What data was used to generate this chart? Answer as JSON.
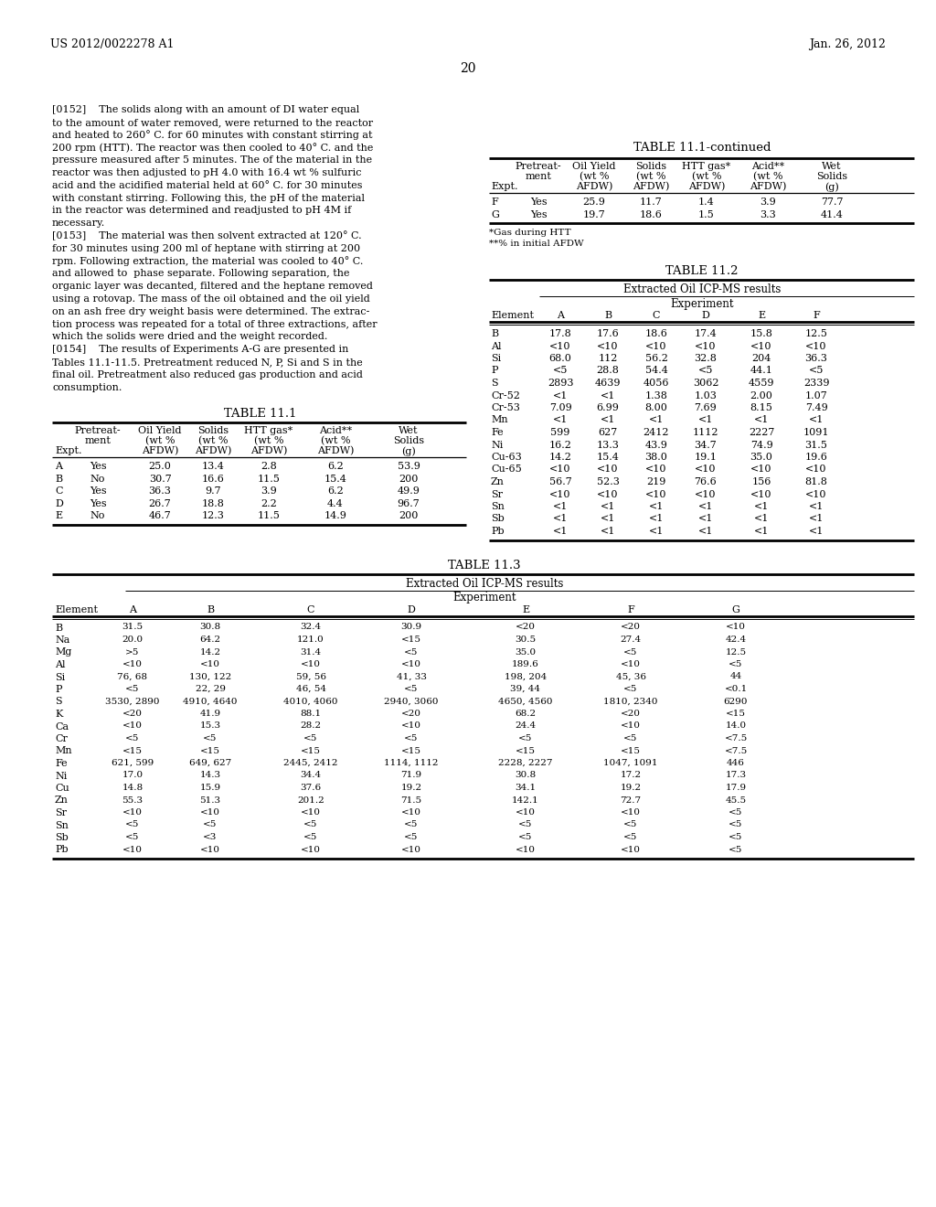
{
  "header_left": "US 2012/0022278 A1",
  "header_right": "Jan. 26, 2012",
  "page_number": "20",
  "body_text": [
    "[0152]    The solids along with an amount of DI water equal",
    "to the amount of water removed, were returned to the reactor",
    "and heated to 260° C. for 60 minutes with constant stirring at",
    "200 rpm (HTT). The reactor was then cooled to 40° C. and the",
    "pressure measured after 5 minutes. The of the material in the",
    "reactor was then adjusted to pH 4.0 with 16.4 wt % sulfuric",
    "acid and the acidified material held at 60° C. for 30 minutes",
    "with constant stirring. Following this, the pH of the material",
    "in the reactor was determined and readjusted to pH 4M if",
    "necessary.",
    "[0153]    The material was then solvent extracted at 120° C.",
    "for 30 minutes using 200 ml of heptane with stirring at 200",
    "rpm. Following extraction, the material was cooled to 40° C.",
    "and allowed to  phase separate. Following separation, the",
    "organic layer was decanted, filtered and the heptane removed",
    "using a rotovap. The mass of the oil obtained and the oil yield",
    "on an ash free dry weight basis were determined. The extrac-",
    "tion process was repeated for a total of three extractions, after",
    "which the solids were dried and the weight recorded.",
    "[0154]    The results of Experiments A-G are presented in",
    "Tables 11.1-11.5. Pretreatment reduced N, P, Si and S in the",
    "final oil. Pretreatment also reduced gas production and acid",
    "consumption."
  ],
  "table111_continued_title": "TABLE 11.1-continued",
  "table111_data": [
    [
      "F",
      "Yes",
      "25.9",
      "11.7",
      "1.4",
      "3.9",
      "77.7"
    ],
    [
      "G",
      "Yes",
      "19.7",
      "18.6",
      "1.5",
      "3.3",
      "41.4"
    ]
  ],
  "table111_footnotes": [
    "*Gas during HTT",
    "**% in initial AFDW"
  ],
  "table111_main_title": "TABLE 11.1",
  "table111_main_data": [
    [
      "A",
      "Yes",
      "25.0",
      "13.4",
      "2.8",
      "6.2",
      "53.9"
    ],
    [
      "B",
      "No",
      "30.7",
      "16.6",
      "11.5",
      "15.4",
      "200"
    ],
    [
      "C",
      "Yes",
      "36.3",
      "9.7",
      "3.9",
      "6.2",
      "49.9"
    ],
    [
      "D",
      "Yes",
      "26.7",
      "18.8",
      "2.2",
      "4.4",
      "96.7"
    ],
    [
      "E",
      "No",
      "46.7",
      "12.3",
      "11.5",
      "14.9",
      "200"
    ]
  ],
  "table112_title": "TABLE 11.2",
  "table112_subtitle": "Extracted Oil ICP-MS results",
  "table112_exp_label": "Experiment",
  "table112_headers": [
    "Element",
    "A",
    "B",
    "C",
    "D",
    "E",
    "F"
  ],
  "table112_data": [
    [
      "B",
      "17.8",
      "17.6",
      "18.6",
      "17.4",
      "15.8",
      "12.5"
    ],
    [
      "Al",
      "<10",
      "<10",
      "<10",
      "<10",
      "<10",
      "<10"
    ],
    [
      "Si",
      "68.0",
      "112",
      "56.2",
      "32.8",
      "204",
      "36.3"
    ],
    [
      "P",
      "<5",
      "28.8",
      "54.4",
      "<5",
      "44.1",
      "<5"
    ],
    [
      "S",
      "2893",
      "4639",
      "4056",
      "3062",
      "4559",
      "2339"
    ],
    [
      "Cr-52",
      "<1",
      "<1",
      "1.38",
      "1.03",
      "2.00",
      "1.07"
    ],
    [
      "Cr-53",
      "7.09",
      "6.99",
      "8.00",
      "7.69",
      "8.15",
      "7.49"
    ],
    [
      "Mn",
      "<1",
      "<1",
      "<1",
      "<1",
      "<1",
      "<1"
    ],
    [
      "Fe",
      "599",
      "627",
      "2412",
      "1112",
      "2227",
      "1091"
    ],
    [
      "Ni",
      "16.2",
      "13.3",
      "43.9",
      "34.7",
      "74.9",
      "31.5"
    ],
    [
      "Cu-63",
      "14.2",
      "15.4",
      "38.0",
      "19.1",
      "35.0",
      "19.6"
    ],
    [
      "Cu-65",
      "<10",
      "<10",
      "<10",
      "<10",
      "<10",
      "<10"
    ],
    [
      "Zn",
      "56.7",
      "52.3",
      "219",
      "76.6",
      "156",
      "81.8"
    ],
    [
      "Sr",
      "<10",
      "<10",
      "<10",
      "<10",
      "<10",
      "<10"
    ],
    [
      "Sn",
      "<1",
      "<1",
      "<1",
      "<1",
      "<1",
      "<1"
    ],
    [
      "Sb",
      "<1",
      "<1",
      "<1",
      "<1",
      "<1",
      "<1"
    ],
    [
      "Pb",
      "<1",
      "<1",
      "<1",
      "<1",
      "<1",
      "<1"
    ]
  ],
  "table113_title": "TABLE 11.3",
  "table113_subtitle": "Extracted Oil ICP-MS results",
  "table113_exp_label": "Experiment",
  "table113_headers": [
    "Element",
    "A",
    "B",
    "C",
    "D",
    "E",
    "F",
    "G"
  ],
  "table113_data": [
    [
      "B",
      "31.5",
      "30.8",
      "32.4",
      "30.9",
      "<20",
      "<20",
      "<10"
    ],
    [
      "Na",
      "20.0",
      "64.2",
      "121.0",
      "<15",
      "30.5",
      "27.4",
      "42.4"
    ],
    [
      "Mg",
      ">5",
      "14.2",
      "31.4",
      "<5",
      "35.0",
      "<5",
      "12.5"
    ],
    [
      "Al",
      "<10",
      "<10",
      "<10",
      "<10",
      "189.6",
      "<10",
      "<5"
    ],
    [
      "Si",
      "76, 68",
      "130, 122",
      "59, 56",
      "41, 33",
      "198, 204",
      "45, 36",
      "44"
    ],
    [
      "P",
      "<5",
      "22, 29",
      "46, 54",
      "<5",
      "39, 44",
      "<5",
      "<0.1"
    ],
    [
      "S",
      "3530, 2890",
      "4910, 4640",
      "4010, 4060",
      "2940, 3060",
      "4650, 4560",
      "1810, 2340",
      "6290"
    ],
    [
      "K",
      "<20",
      "41.9",
      "88.1",
      "<20",
      "68.2",
      "<20",
      "<15"
    ],
    [
      "Ca",
      "<10",
      "15.3",
      "28.2",
      "<10",
      "24.4",
      "<10",
      "14.0"
    ],
    [
      "Cr",
      "<5",
      "<5",
      "<5",
      "<5",
      "<5",
      "<5",
      "<7.5"
    ],
    [
      "Mn",
      "<15",
      "<15",
      "<15",
      "<15",
      "<15",
      "<15",
      "<7.5"
    ],
    [
      "Fe",
      "621, 599",
      "649, 627",
      "2445, 2412",
      "1114, 1112",
      "2228, 2227",
      "1047, 1091",
      "446"
    ],
    [
      "Ni",
      "17.0",
      "14.3",
      "34.4",
      "71.9",
      "30.8",
      "17.2",
      "17.3"
    ],
    [
      "Cu",
      "14.8",
      "15.9",
      "37.6",
      "19.2",
      "34.1",
      "19.2",
      "17.9"
    ],
    [
      "Zn",
      "55.3",
      "51.3",
      "201.2",
      "71.5",
      "142.1",
      "72.7",
      "45.5"
    ],
    [
      "Sr",
      "<10",
      "<10",
      "<10",
      "<10",
      "<10",
      "<10",
      "<5"
    ],
    [
      "Sn",
      "<5",
      "<5",
      "<5",
      "<5",
      "<5",
      "<5",
      "<5"
    ],
    [
      "Sb",
      "<5",
      "<3",
      "<5",
      "<5",
      "<5",
      "<5",
      "<5"
    ],
    [
      "Pb",
      "<10",
      "<10",
      "<10",
      "<10",
      "<10",
      "<10",
      "<5"
    ]
  ]
}
